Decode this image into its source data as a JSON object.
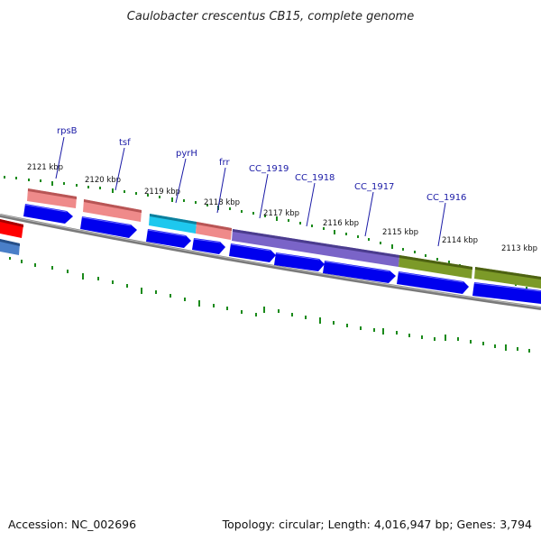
{
  "title": "Caulobacter crescentus CB15, complete genome",
  "footer": {
    "accession": "Accession: NC_002696",
    "summary": "Topology: circular; Length: 4,016,947 bp; Genes: 3,794"
  },
  "scale_labels": [
    "2121 kbp",
    "2120 kbp",
    "2119 kbp",
    "2118 kbp",
    "2117 kbp",
    "2116 kbp",
    "2115 kbp",
    "2114 kbp",
    "2113 kbp"
  ],
  "gene_labels": [
    "rpsB",
    "tsf",
    "pyrH",
    "frr",
    "CC_1919",
    "CC_1918",
    "CC_1917",
    "CC_1916"
  ],
  "colors": {
    "backbone": "#7a7a7a",
    "cds_arrow": "#0000ee",
    "ribosomal": "#ef8a8a",
    "nucleotide": "#1ec8ee",
    "membrane": "#7a64c8",
    "cell_wall": "#7c9a28",
    "other_red": "#ff0000",
    "other_blue": "#4a7fc8",
    "tick": "#1a8a1a",
    "label_line": "#1a1aa6"
  }
}
